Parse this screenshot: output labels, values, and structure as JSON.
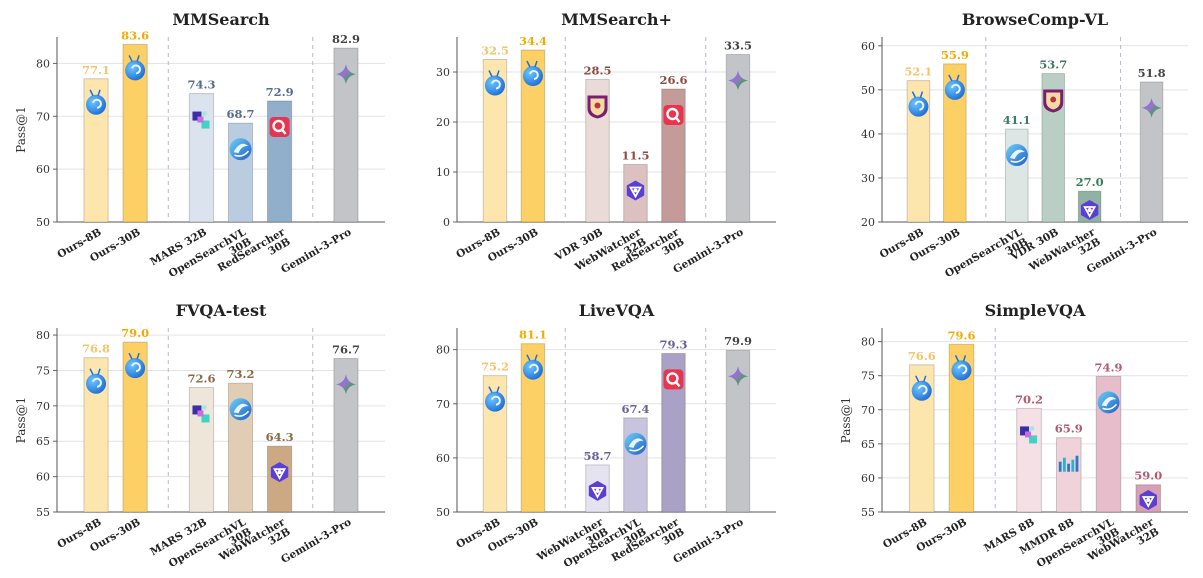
{
  "chart_data": [
    {
      "type": "bar",
      "title": "MMSearch",
      "ylabel": "Pass@1",
      "ylim": [
        50,
        85
      ],
      "yticks": [
        50,
        60,
        70,
        80
      ],
      "categories": [
        "Ours-8B",
        "Ours-30B",
        "MARS 32B",
        "OpenSearchVL 30B",
        "RedSearcher 30B",
        "Gemini-3-Pro"
      ],
      "values": [
        77.1,
        83.6,
        74.3,
        68.7,
        72.9,
        82.9
      ],
      "value_labels": [
        "77.1",
        "83.6",
        "74.3",
        "68.7",
        "72.9",
        "82.9"
      ],
      "groups": [
        0,
        0,
        1,
        1,
        1,
        2
      ],
      "bar_colors": [
        "#fde5ae",
        "#fdd066",
        "#dbe3ef",
        "#b9cce0",
        "#91aecb",
        "#c2c4c8"
      ],
      "label_colors": [
        "#f3c46a",
        "#f0ac00",
        "#556b90",
        "#556b90",
        "#556b90",
        "#444444"
      ],
      "icons": [
        "snail-icon",
        "snail-icon",
        "mars-logo-icon",
        "opensearchvl-logo-icon",
        "redsearcher-logo-icon",
        "gemini-logo-icon"
      ]
    },
    {
      "type": "bar",
      "title": "MMSearch+",
      "ylim": [
        0,
        37
      ],
      "yticks": [
        0,
        10,
        20,
        30
      ],
      "categories": [
        "Ours-8B",
        "Ours-30B",
        "VDR 30B",
        "WebWatcher 32B",
        "RedSearcher 30B",
        "Gemini-3-Pro"
      ],
      "values": [
        32.5,
        34.4,
        28.5,
        11.5,
        26.6,
        33.5
      ],
      "value_labels": [
        "32.5",
        "34.4",
        "28.5",
        "11.5",
        "26.6",
        "33.5"
      ],
      "groups": [
        0,
        0,
        1,
        1,
        1,
        2
      ],
      "bar_colors": [
        "#fde5ae",
        "#fdd066",
        "#eadbd8",
        "#dcc1c0",
        "#c49b98",
        "#c2c4c8"
      ],
      "label_colors": [
        "#f3c46a",
        "#f0ac00",
        "#8a4b43",
        "#8a4b43",
        "#8a4b43",
        "#444444"
      ],
      "icons": [
        "snail-icon",
        "snail-icon",
        "university-seal-icon",
        "webwatcher-logo-icon",
        "redsearcher-logo-icon",
        "gemini-logo-icon"
      ]
    },
    {
      "type": "bar",
      "title": "BrowseComp-VL",
      "ylim": [
        20,
        62
      ],
      "yticks": [
        20,
        30,
        40,
        50,
        60
      ],
      "categories": [
        "Ours-8B",
        "Ours-30B",
        "OpenSearchVL 30B",
        "VDR 30B",
        "WebWatcher 32B",
        "Gemini-3-Pro"
      ],
      "values": [
        52.1,
        55.9,
        41.1,
        53.7,
        27.0,
        51.8
      ],
      "value_labels": [
        "52.1",
        "55.9",
        "41.1",
        "53.7",
        "27.0",
        "51.8"
      ],
      "groups": [
        0,
        0,
        1,
        1,
        1,
        2
      ],
      "bar_colors": [
        "#fde5ae",
        "#fdd066",
        "#dde6e2",
        "#b9cfc5",
        "#8fb2a2",
        "#c2c4c8"
      ],
      "label_colors": [
        "#f3c46a",
        "#f0ac00",
        "#3f7a62",
        "#3f7a62",
        "#3f7a62",
        "#444444"
      ],
      "icons": [
        "snail-icon",
        "snail-icon",
        "opensearchvl-logo-icon",
        "university-seal-icon",
        "webwatcher-logo-icon",
        "gemini-logo-icon"
      ]
    },
    {
      "type": "bar",
      "title": "FVQA-test",
      "ylabel": "Pass@1",
      "ylim": [
        55,
        81
      ],
      "yticks": [
        55,
        60,
        65,
        70,
        75,
        80
      ],
      "categories": [
        "Ours-8B",
        "Ours-30B",
        "MARS 32B",
        "OpenSearchVL 30B",
        "WebWatcher 32B",
        "Gemini-3-Pro"
      ],
      "values": [
        76.8,
        79.0,
        72.6,
        73.2,
        64.3,
        76.7
      ],
      "value_labels": [
        "76.8",
        "79.0",
        "72.6",
        "73.2",
        "64.3",
        "76.7"
      ],
      "groups": [
        0,
        0,
        1,
        1,
        1,
        2
      ],
      "bar_colors": [
        "#fde5ae",
        "#fdd066",
        "#efe6da",
        "#e0cdb3",
        "#cca883",
        "#c2c4c8"
      ],
      "label_colors": [
        "#f3c46a",
        "#f0ac00",
        "#8a6a44",
        "#8a6a44",
        "#8a6a44",
        "#444444"
      ],
      "icons": [
        "snail-icon",
        "snail-icon",
        "mars-logo-icon",
        "opensearchvl-logo-icon",
        "webwatcher-logo-icon",
        "gemini-logo-icon"
      ]
    },
    {
      "type": "bar",
      "title": "LiveVQA",
      "ylim": [
        50,
        84
      ],
      "yticks": [
        50,
        60,
        70,
        80
      ],
      "categories": [
        "Ours-8B",
        "Ours-30B",
        "WebWatcher 30B",
        "OpenSearchVL 30B",
        "RedSearcher 30B",
        "Gemini-3-Pro"
      ],
      "values": [
        75.2,
        81.1,
        58.7,
        67.4,
        79.3,
        79.9
      ],
      "value_labels": [
        "75.2",
        "81.1",
        "58.7",
        "67.4",
        "79.3",
        "79.9"
      ],
      "groups": [
        0,
        0,
        1,
        1,
        1,
        2
      ],
      "bar_colors": [
        "#fde5ae",
        "#fdd066",
        "#e5e3ef",
        "#c9c4dd",
        "#a9a2c6",
        "#c2c4c8"
      ],
      "label_colors": [
        "#f3c46a",
        "#f0ac00",
        "#6a5f97",
        "#6a5f97",
        "#6a5f97",
        "#444444"
      ],
      "icons": [
        "snail-icon",
        "snail-icon",
        "webwatcher-logo-icon",
        "opensearchvl-logo-icon",
        "redsearcher-logo-icon",
        "gemini-logo-icon"
      ]
    },
    {
      "type": "bar",
      "title": "SimpleVQA",
      "ylabel": "Pass@1",
      "ylim": [
        55,
        82
      ],
      "yticks": [
        55,
        60,
        65,
        70,
        75,
        80
      ],
      "categories": [
        "Ours-8B",
        "Ours-30B",
        "MARS 8B",
        "MMDR 8B",
        "OpenSearchVL 30B",
        "WebWatcher 32B"
      ],
      "values": [
        76.6,
        79.6,
        70.2,
        65.9,
        74.9,
        59.0
      ],
      "value_labels": [
        "76.6",
        "79.6",
        "70.2",
        "65.9",
        "74.9",
        "59.0"
      ],
      "groups": [
        0,
        0,
        1,
        1,
        1,
        1
      ],
      "bar_colors": [
        "#fde5ae",
        "#fdd066",
        "#f5e0e5",
        "#efd2da",
        "#e7bccb",
        "#d7a0b5"
      ],
      "label_colors": [
        "#f3c46a",
        "#f0ac00",
        "#b5576f",
        "#b5576f",
        "#b5576f",
        "#b5576f"
      ],
      "icons": [
        "snail-icon",
        "snail-icon",
        "mars-logo-icon",
        "mmdr-logo-icon",
        "opensearchvl-logo-icon",
        "webwatcher-logo-icon"
      ]
    }
  ]
}
